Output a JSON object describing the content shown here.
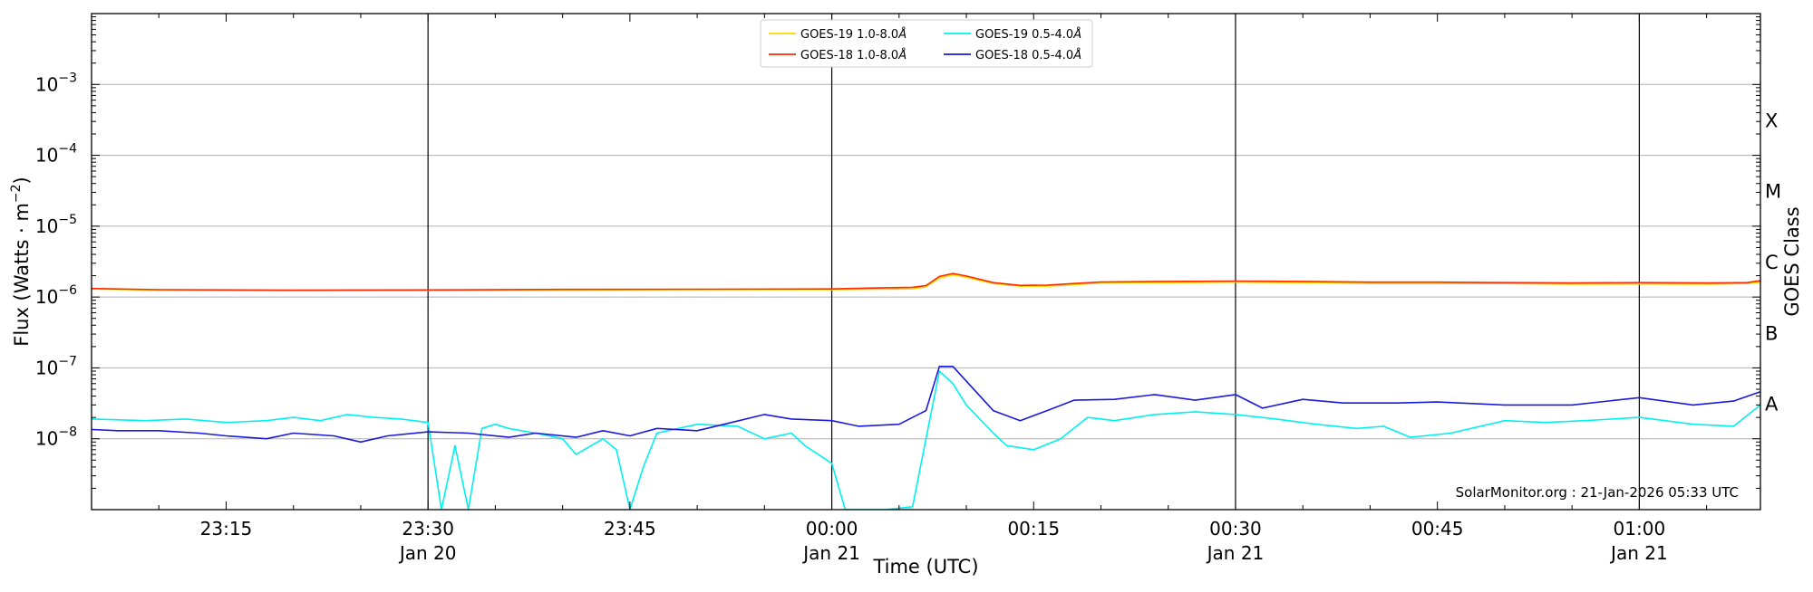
{
  "chart_data": {
    "type": "line",
    "xlabel": "Time (UTC)",
    "ylabel": "Flux (Watts · m",
    "ylabel_exponent": "−2",
    "ylabel_close": ")",
    "right_axis_label": "GOES Class",
    "y_scale": "log",
    "ylim": [
      1e-09,
      0.01
    ],
    "y_ticks": [
      {
        "value": 1e-08,
        "base": "10",
        "exp": "−8"
      },
      {
        "value": 1e-07,
        "base": "10",
        "exp": "−7"
      },
      {
        "value": 1e-06,
        "base": "10",
        "exp": "−6"
      },
      {
        "value": 1e-05,
        "base": "10",
        "exp": "−5"
      },
      {
        "value": 0.0001,
        "base": "10",
        "exp": "−4"
      },
      {
        "value": 0.001,
        "base": "10",
        "exp": "−3"
      }
    ],
    "goes_classes": [
      {
        "label": "A",
        "value": 1e-08
      },
      {
        "label": "B",
        "value": 1e-07
      },
      {
        "label": "C",
        "value": 1e-06
      },
      {
        "label": "M",
        "value": 1e-05
      },
      {
        "label": "X",
        "value": 0.0001
      }
    ],
    "x_range": [
      "2026-01-20 23:05",
      "2026-01-21 01:09"
    ],
    "x_ticks": [
      {
        "time": "2026-01-20 23:15",
        "label": "23:15",
        "sublabel": ""
      },
      {
        "time": "2026-01-20 23:30",
        "label": "23:30",
        "sublabel": "Jan 20"
      },
      {
        "time": "2026-01-20 23:45",
        "label": "23:45",
        "sublabel": ""
      },
      {
        "time": "2026-01-21 00:00",
        "label": "00:00",
        "sublabel": "Jan 21"
      },
      {
        "time": "2026-01-21 00:15",
        "label": "00:15",
        "sublabel": ""
      },
      {
        "time": "2026-01-21 00:30",
        "label": "00:30",
        "sublabel": "Jan 21"
      },
      {
        "time": "2026-01-21 00:45",
        "label": "00:45",
        "sublabel": ""
      },
      {
        "time": "2026-01-21 01:00",
        "label": "01:00",
        "sublabel": "Jan 21"
      }
    ],
    "vertical_lines": [
      "2026-01-20 23:30",
      "2026-01-21 00:00",
      "2026-01-21 00:30",
      "2026-01-21 01:00"
    ],
    "horizontal_grid": true,
    "legend_position": "top-center",
    "credit": "SolarMonitor.org : 21-Jan-2026 05:33 UTC",
    "series": [
      {
        "name": "GOES-19 1.0-8.0",
        "color": "#ffd700",
        "x": [
          "2026-01-20 23:05",
          "2026-01-20 23:10",
          "2026-01-20 23:20",
          "2026-01-20 23:30",
          "2026-01-20 23:40",
          "2026-01-20 23:50",
          "2026-01-21 00:00",
          "2026-01-21 00:03",
          "2026-01-21 00:06",
          "2026-01-21 00:07",
          "2026-01-21 00:08",
          "2026-01-21 00:09",
          "2026-01-21 00:10",
          "2026-01-21 00:12",
          "2026-01-21 00:14",
          "2026-01-21 00:16",
          "2026-01-21 00:18",
          "2026-01-21 00:20",
          "2026-01-21 00:25",
          "2026-01-21 00:30",
          "2026-01-21 00:35",
          "2026-01-21 00:40",
          "2026-01-21 00:45",
          "2026-01-21 00:50",
          "2026-01-21 00:55",
          "2026-01-21 01:00",
          "2026-01-21 01:05",
          "2026-01-21 01:08",
          "2026-01-21 01:09"
        ],
        "values": [
          1.3e-06,
          1.25e-06,
          1.23e-06,
          1.24e-06,
          1.26e-06,
          1.27e-06,
          1.27e-06,
          1.29e-06,
          1.3e-06,
          1.4e-06,
          1.85e-06,
          2.05e-06,
          1.9e-06,
          1.55e-06,
          1.42e-06,
          1.42e-06,
          1.5e-06,
          1.58e-06,
          1.6e-06,
          1.62e-06,
          1.6e-06,
          1.55e-06,
          1.55e-06,
          1.55e-06,
          1.52e-06,
          1.53e-06,
          1.52e-06,
          1.55e-06,
          1.62e-06
        ]
      },
      {
        "name": "GOES-18 1.0-8.0",
        "color": "#ff2a00",
        "x": [
          "2026-01-20 23:05",
          "2026-01-20 23:10",
          "2026-01-20 23:20",
          "2026-01-20 23:30",
          "2026-01-20 23:40",
          "2026-01-20 23:50",
          "2026-01-21 00:00",
          "2026-01-21 00:03",
          "2026-01-21 00:06",
          "2026-01-21 00:07",
          "2026-01-21 00:08",
          "2026-01-21 00:09",
          "2026-01-21 00:10",
          "2026-01-21 00:12",
          "2026-01-21 00:14",
          "2026-01-21 00:16",
          "2026-01-21 00:18",
          "2026-01-21 00:20",
          "2026-01-21 00:25",
          "2026-01-21 00:30",
          "2026-01-21 00:35",
          "2026-01-21 00:40",
          "2026-01-21 00:45",
          "2026-01-21 00:50",
          "2026-01-21 00:55",
          "2026-01-21 01:00",
          "2026-01-21 01:05",
          "2026-01-21 01:08",
          "2026-01-21 01:09"
        ],
        "values": [
          1.32e-06,
          1.27e-06,
          1.25e-06,
          1.26e-06,
          1.28e-06,
          1.29e-06,
          1.3e-06,
          1.34e-06,
          1.37e-06,
          1.45e-06,
          1.95e-06,
          2.15e-06,
          1.98e-06,
          1.6e-06,
          1.46e-06,
          1.47e-06,
          1.55e-06,
          1.63e-06,
          1.66e-06,
          1.68e-06,
          1.66e-06,
          1.62e-06,
          1.62e-06,
          1.6e-06,
          1.58e-06,
          1.6e-06,
          1.58e-06,
          1.6e-06,
          1.7e-06
        ]
      },
      {
        "name": "GOES-19 0.5-4.0",
        "color": "#00f0f0",
        "x": [
          "2026-01-20 23:05",
          "2026-01-20 23:07",
          "2026-01-20 23:09",
          "2026-01-20 23:12",
          "2026-01-20 23:15",
          "2026-01-20 23:18",
          "2026-01-20 23:20",
          "2026-01-20 23:22",
          "2026-01-20 23:24",
          "2026-01-20 23:26",
          "2026-01-20 23:28",
          "2026-01-20 23:30",
          "2026-01-20 23:31",
          "2026-01-20 23:32",
          "2026-01-20 23:33",
          "2026-01-20 23:34",
          "2026-01-20 23:35",
          "2026-01-20 23:36",
          "2026-01-20 23:38",
          "2026-01-20 23:40",
          "2026-01-20 23:41",
          "2026-01-20 23:43",
          "2026-01-20 23:44",
          "2026-01-20 23:45",
          "2026-01-20 23:46",
          "2026-01-20 23:47",
          "2026-01-20 23:50",
          "2026-01-20 23:53",
          "2026-01-20 23:55",
          "2026-01-20 23:57",
          "2026-01-20 23:58",
          "2026-01-21 00:00",
          "2026-01-21 00:01",
          "2026-01-21 00:04",
          "2026-01-21 00:06",
          "2026-01-21 00:07",
          "2026-01-21 00:08",
          "2026-01-21 00:09",
          "2026-01-21 00:10",
          "2026-01-21 00:12",
          "2026-01-21 00:13",
          "2026-01-21 00:15",
          "2026-01-21 00:17",
          "2026-01-21 00:19",
          "2026-01-21 00:21",
          "2026-01-21 00:24",
          "2026-01-21 00:27",
          "2026-01-21 00:30",
          "2026-01-21 00:33",
          "2026-01-21 00:36",
          "2026-01-21 00:39",
          "2026-01-21 00:41",
          "2026-01-21 00:43",
          "2026-01-21 00:46",
          "2026-01-21 00:50",
          "2026-01-21 00:53",
          "2026-01-21 00:56",
          "2026-01-21 01:00",
          "2026-01-21 01:04",
          "2026-01-21 01:07",
          "2026-01-21 01:09"
        ],
        "values": [
          1.9e-08,
          1.85e-08,
          1.8e-08,
          1.9e-08,
          1.7e-08,
          1.8e-08,
          2e-08,
          1.8e-08,
          2.2e-08,
          2e-08,
          1.9e-08,
          1.7e-08,
          1e-09,
          8e-09,
          1e-09,
          1.4e-08,
          1.6e-08,
          1.4e-08,
          1.2e-08,
          1e-08,
          6e-09,
          1e-08,
          7e-09,
          1e-09,
          4e-09,
          1.2e-08,
          1.6e-08,
          1.5e-08,
          1e-08,
          1.2e-08,
          8e-09,
          4.5e-09,
          1e-09,
          1e-09,
          1.1e-09,
          1e-08,
          9e-08,
          6e-08,
          3e-08,
          1.2e-08,
          8e-09,
          7e-09,
          1e-08,
          2e-08,
          1.8e-08,
          2.2e-08,
          2.4e-08,
          2.2e-08,
          1.9e-08,
          1.6e-08,
          1.4e-08,
          1.5e-08,
          1.05e-08,
          1.2e-08,
          1.8e-08,
          1.7e-08,
          1.8e-08,
          2e-08,
          1.6e-08,
          1.5e-08,
          3e-08
        ]
      },
      {
        "name": "GOES-18 0.5-4.0",
        "color": "#1a1adc",
        "x": [
          "2026-01-20 23:05",
          "2026-01-20 23:07",
          "2026-01-20 23:10",
          "2026-01-20 23:13",
          "2026-01-20 23:15",
          "2026-01-20 23:18",
          "2026-01-20 23:20",
          "2026-01-20 23:23",
          "2026-01-20 23:25",
          "2026-01-20 23:27",
          "2026-01-20 23:30",
          "2026-01-20 23:33",
          "2026-01-20 23:36",
          "2026-01-20 23:38",
          "2026-01-20 23:41",
          "2026-01-20 23:43",
          "2026-01-20 23:45",
          "2026-01-20 23:47",
          "2026-01-20 23:50",
          "2026-01-20 23:52",
          "2026-01-20 23:55",
          "2026-01-20 23:57",
          "2026-01-21 00:00",
          "2026-01-21 00:02",
          "2026-01-21 00:05",
          "2026-01-21 00:07",
          "2026-01-21 00:08",
          "2026-01-21 00:09",
          "2026-01-21 00:10",
          "2026-01-21 00:12",
          "2026-01-21 00:14",
          "2026-01-21 00:16",
          "2026-01-21 00:18",
          "2026-01-21 00:21",
          "2026-01-21 00:24",
          "2026-01-21 00:27",
          "2026-01-21 00:30",
          "2026-01-21 00:32",
          "2026-01-21 00:35",
          "2026-01-21 00:38",
          "2026-01-21 00:42",
          "2026-01-21 00:45",
          "2026-01-21 00:50",
          "2026-01-21 00:55",
          "2026-01-21 01:00",
          "2026-01-21 01:04",
          "2026-01-21 01:07",
          "2026-01-21 01:09"
        ],
        "values": [
          1.35e-08,
          1.3e-08,
          1.3e-08,
          1.2e-08,
          1.1e-08,
          1e-08,
          1.2e-08,
          1.1e-08,
          9e-09,
          1.1e-08,
          1.25e-08,
          1.2e-08,
          1.05e-08,
          1.2e-08,
          1.05e-08,
          1.3e-08,
          1.1e-08,
          1.4e-08,
          1.3e-08,
          1.6e-08,
          2.2e-08,
          1.9e-08,
          1.8e-08,
          1.5e-08,
          1.6e-08,
          2.5e-08,
          1.05e-07,
          1.05e-07,
          6.5e-08,
          2.5e-08,
          1.8e-08,
          2.5e-08,
          3.5e-08,
          3.6e-08,
          4.2e-08,
          3.5e-08,
          4.2e-08,
          2.7e-08,
          3.6e-08,
          3.2e-08,
          3.2e-08,
          3.3e-08,
          3e-08,
          3e-08,
          3.8e-08,
          3e-08,
          3.4e-08,
          4.6e-08
        ]
      }
    ]
  }
}
